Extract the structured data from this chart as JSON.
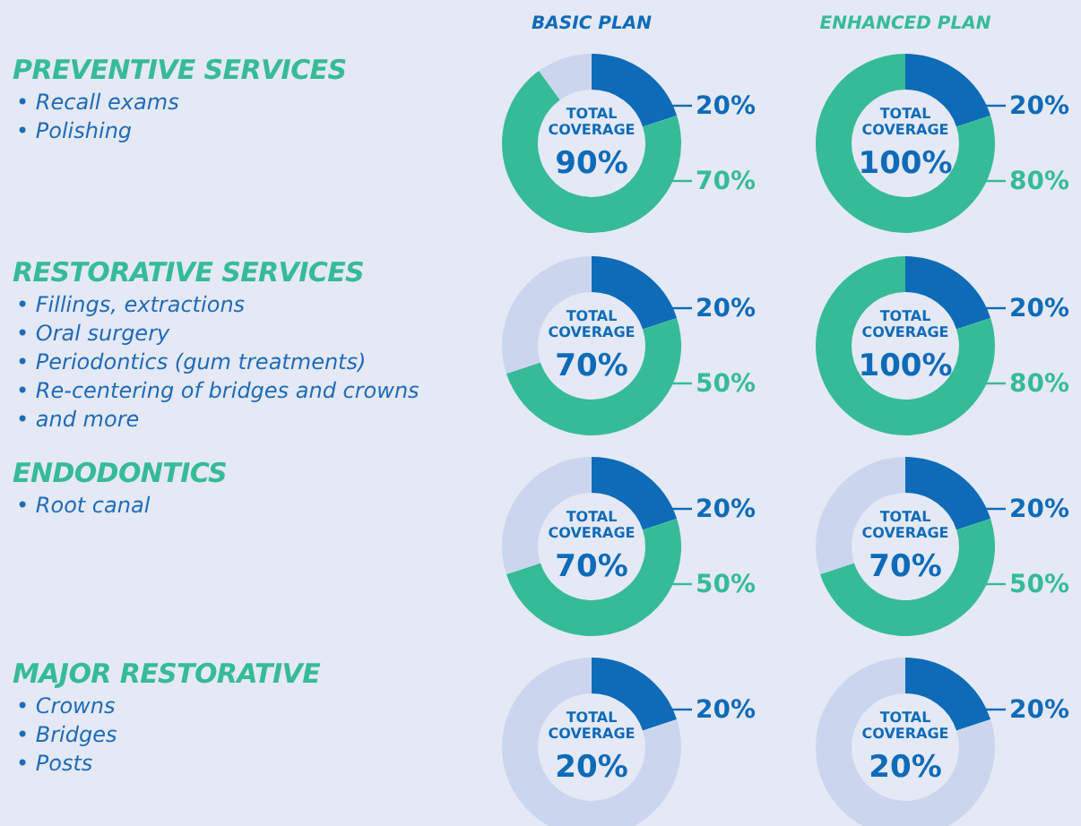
{
  "chart_data": [
    {
      "type": "other",
      "title": "PREVENTIVE SERVICES",
      "annotations": [
        "• Recall exams",
        "• Polishing"
      ]
    },
    {
      "type": "donut",
      "title": "BASIC PLAN",
      "categories": [
        null,
        null,
        null
      ],
      "values": [
        20,
        70,
        10
      ],
      "colors": [
        "#0e6bb8",
        "#36bb97",
        "#cbd6ee"
      ],
      "value_labels": [
        "20%",
        "70%",
        null
      ],
      "annotations": [
        "TOTAL COVERAGE",
        "90%"
      ],
      "legend": false
    },
    {
      "type": "donut",
      "title": "ENHANCED PLAN",
      "categories": [
        null,
        null
      ],
      "values": [
        20,
        80
      ],
      "colors": [
        "#0e6bb8",
        "#36bb97"
      ],
      "value_labels": [
        "20%",
        "80%"
      ],
      "annotations": [
        "TOTAL COVERAGE",
        "100%"
      ],
      "legend": false
    },
    {
      "type": "other",
      "title": "RESTORATIVE SERVICES",
      "annotations": [
        "• Fillings, extractions",
        "• Oral surgery",
        "• Periodontics (gum treatments)",
        "• Re-centering of bridges and crowns",
        "• and more"
      ]
    },
    {
      "type": "donut",
      "categories": [
        null,
        null,
        null
      ],
      "values": [
        20,
        50,
        30
      ],
      "colors": [
        "#0e6bb8",
        "#36bb97",
        "#cbd6ee"
      ],
      "value_labels": [
        "20%",
        "50%",
        null
      ],
      "annotations": [
        "TOTAL COVERAGE",
        "70%"
      ],
      "legend": false
    },
    {
      "type": "donut",
      "categories": [
        null,
        null
      ],
      "values": [
        20,
        80
      ],
      "colors": [
        "#0e6bb8",
        "#36bb97"
      ],
      "value_labels": [
        "20%",
        "80%"
      ],
      "annotations": [
        "TOTAL COVERAGE",
        "100%"
      ],
      "legend": false
    },
    {
      "type": "other",
      "title": "ENDODONTICS",
      "annotations": [
        "• Root canal"
      ]
    },
    {
      "type": "donut",
      "categories": [
        null,
        null,
        null
      ],
      "values": [
        20,
        50,
        30
      ],
      "colors": [
        "#0e6bb8",
        "#36bb97",
        "#cbd6ee"
      ],
      "value_labels": [
        "20%",
        "50%",
        null
      ],
      "annotations": [
        "TOTAL COVERAGE",
        "70%"
      ],
      "legend": false
    },
    {
      "type": "donut",
      "categories": [
        null,
        null,
        null
      ],
      "values": [
        20,
        50,
        30
      ],
      "colors": [
        "#0e6bb8",
        "#36bb97",
        "#cbd6ee"
      ],
      "value_labels": [
        "20%",
        "50%",
        null
      ],
      "annotations": [
        "TOTAL COVERAGE",
        "70%"
      ],
      "legend": false
    },
    {
      "type": "other",
      "title": "MAJOR RESTORATIVE",
      "annotations": [
        "• Crowns",
        "• Bridges",
        "• Posts"
      ]
    },
    {
      "type": "donut",
      "categories": [
        null,
        null
      ],
      "values": [
        20,
        80
      ],
      "colors": [
        "#0e6bb8",
        "#cbd6ee"
      ],
      "value_labels": [
        "20%",
        null
      ],
      "annotations": [
        "TOTAL COVERAGE",
        "20%"
      ],
      "legend": false
    },
    {
      "type": "donut",
      "categories": [
        null,
        null
      ],
      "values": [
        20,
        80
      ],
      "colors": [
        "#0e6bb8",
        "#cbd6ee"
      ],
      "value_labels": [
        "20%",
        null
      ],
      "annotations": [
        "TOTAL COVERAGE",
        "20%"
      ],
      "legend": false
    }
  ]
}
